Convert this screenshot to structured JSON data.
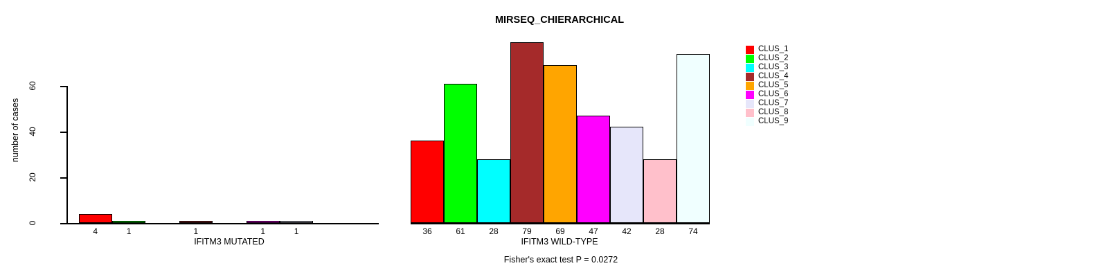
{
  "title": "MIRSEQ_CHIERARCHICAL",
  "chart_data": {
    "type": "bar",
    "title": "MIRSEQ_CHIERARCHICAL",
    "ylabel": "number of cases",
    "xlabel": "",
    "annotation": "Fisher's exact test P = 0.0272",
    "categories": [
      "CLUS_1",
      "CLUS_2",
      "CLUS_3",
      "CLUS_4",
      "CLUS_5",
      "CLUS_6",
      "CLUS_7",
      "CLUS_8",
      "CLUS_9"
    ],
    "series": [
      {
        "name": "IFITM3 MUTATED",
        "values": [
          4,
          1,
          0,
          1,
          0,
          1,
          1,
          0,
          0
        ]
      },
      {
        "name": "IFITM3 WILD-TYPE",
        "values": [
          36,
          61,
          28,
          79,
          69,
          47,
          42,
          28,
          74
        ]
      }
    ],
    "colors": [
      "#FF0000",
      "#00FF00",
      "#00FFFF",
      "#A52A2A",
      "#FFA500",
      "#FF00FF",
      "#E6E6FA",
      "#FFC0CB",
      "#F0FFFF"
    ],
    "y_ticks": [
      0,
      20,
      40,
      60
    ],
    "ylim": [
      0,
      80
    ],
    "bar_value_labels": true,
    "grid": false,
    "legend_position": "right",
    "legend_entries": [
      "CLUS_1",
      "CLUS_2",
      "CLUS_3",
      "CLUS_4",
      "CLUS_5",
      "CLUS_6",
      "CLUS_7",
      "CLUS_8",
      "CLUS_9"
    ]
  }
}
